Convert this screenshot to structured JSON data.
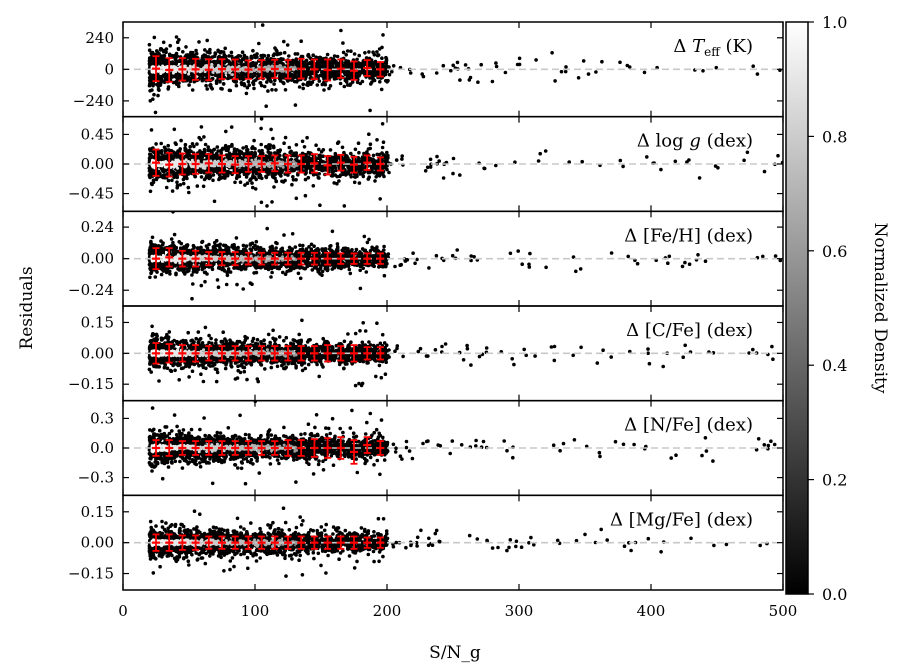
{
  "chart_data": {
    "type": "scatter",
    "xlabel": "S/N_g",
    "ylabel": "Residuals",
    "xlim": [
      0,
      500
    ],
    "x_ticks": [
      0,
      100,
      200,
      300,
      400,
      500
    ],
    "colorbar": {
      "label": "Normalized Density",
      "range": [
        0.0,
        1.0
      ],
      "ticks": [
        "0.0",
        "0.2",
        "0.4",
        "0.6",
        "0.8",
        "1.0"
      ],
      "colormap": "greys (black = 0, white = 1)"
    },
    "reference_line": {
      "y": 0,
      "style": "dashed",
      "color": "#c8c8c8"
    },
    "point_color": "#000000",
    "errorbar_color": "#ff0000",
    "panels": [
      {
        "name": "teff",
        "label_prefix": "Δ ",
        "label_main": "T",
        "label_sub": "eff",
        "label_suffix": " (K)",
        "ylim": [
          -360,
          360
        ],
        "ticks": [
          240,
          0,
          -240
        ],
        "tick_labels": [
          "240",
          "0",
          "−240"
        ],
        "spread": 100,
        "binned": [
          {
            "x": 25,
            "y": 5,
            "err": 95
          },
          {
            "x": 35,
            "y": -5,
            "err": 90
          },
          {
            "x": 45,
            "y": 0,
            "err": 85
          },
          {
            "x": 55,
            "y": 0,
            "err": 80
          },
          {
            "x": 65,
            "y": -3,
            "err": 80
          },
          {
            "x": 75,
            "y": 2,
            "err": 75
          },
          {
            "x": 85,
            "y": 0,
            "err": 75
          },
          {
            "x": 95,
            "y": -2,
            "err": 70
          },
          {
            "x": 105,
            "y": 0,
            "err": 70
          },
          {
            "x": 115,
            "y": 3,
            "err": 70
          },
          {
            "x": 125,
            "y": 0,
            "err": 70
          },
          {
            "x": 135,
            "y": 5,
            "err": 75
          },
          {
            "x": 145,
            "y": 0,
            "err": 75
          },
          {
            "x": 155,
            "y": -5,
            "err": 80
          },
          {
            "x": 165,
            "y": 5,
            "err": 70
          },
          {
            "x": 175,
            "y": -10,
            "err": 70
          },
          {
            "x": 185,
            "y": 10,
            "err": 60
          },
          {
            "x": 195,
            "y": 0,
            "err": 55
          }
        ]
      },
      {
        "name": "logg",
        "label_prefix": "Δ log ",
        "label_main": "g",
        "label_sub": "",
        "label_suffix": " (dex)",
        "ylim": [
          -0.72,
          0.72
        ],
        "ticks": [
          0.45,
          0.0,
          -0.45
        ],
        "tick_labels": [
          "0.45",
          "0.00",
          "−0.45"
        ],
        "spread": 0.2,
        "binned": [
          {
            "x": 25,
            "y": 0.02,
            "err": 0.2
          },
          {
            "x": 35,
            "y": -0.01,
            "err": 0.18
          },
          {
            "x": 45,
            "y": 0.0,
            "err": 0.16
          },
          {
            "x": 55,
            "y": 0.0,
            "err": 0.15
          },
          {
            "x": 65,
            "y": 0.01,
            "err": 0.14
          },
          {
            "x": 75,
            "y": 0.0,
            "err": 0.13
          },
          {
            "x": 85,
            "y": -0.01,
            "err": 0.13
          },
          {
            "x": 95,
            "y": 0.0,
            "err": 0.12
          },
          {
            "x": 105,
            "y": 0.0,
            "err": 0.12
          },
          {
            "x": 115,
            "y": 0.01,
            "err": 0.12
          },
          {
            "x": 125,
            "y": 0.0,
            "err": 0.13
          },
          {
            "x": 135,
            "y": 0.0,
            "err": 0.13
          },
          {
            "x": 145,
            "y": 0.01,
            "err": 0.14
          },
          {
            "x": 155,
            "y": -0.02,
            "err": 0.14
          },
          {
            "x": 165,
            "y": 0.02,
            "err": 0.12
          },
          {
            "x": 175,
            "y": -0.01,
            "err": 0.12
          },
          {
            "x": 185,
            "y": 0.02,
            "err": 0.11
          },
          {
            "x": 195,
            "y": 0.0,
            "err": 0.1
          }
        ]
      },
      {
        "name": "feh",
        "label_prefix": "Δ [Fe/H] (dex)",
        "label_main": "",
        "label_sub": "",
        "label_suffix": "",
        "ylim": [
          -0.36,
          0.36
        ],
        "ticks": [
          0.24,
          0.0,
          -0.24
        ],
        "tick_labels": [
          "0.24",
          "0.00",
          "−0.24"
        ],
        "spread": 0.08,
        "binned": [
          {
            "x": 25,
            "y": 0.0,
            "err": 0.08
          },
          {
            "x": 35,
            "y": 0.01,
            "err": 0.07
          },
          {
            "x": 45,
            "y": 0.0,
            "err": 0.06
          },
          {
            "x": 55,
            "y": 0.0,
            "err": 0.06
          },
          {
            "x": 65,
            "y": 0.0,
            "err": 0.05
          },
          {
            "x": 75,
            "y": 0.0,
            "err": 0.05
          },
          {
            "x": 85,
            "y": 0.0,
            "err": 0.05
          },
          {
            "x": 95,
            "y": 0.0,
            "err": 0.045
          },
          {
            "x": 105,
            "y": 0.0,
            "err": 0.045
          },
          {
            "x": 115,
            "y": 0.0,
            "err": 0.045
          },
          {
            "x": 125,
            "y": 0.0,
            "err": 0.045
          },
          {
            "x": 135,
            "y": 0.0,
            "err": 0.045
          },
          {
            "x": 145,
            "y": 0.0,
            "err": 0.045
          },
          {
            "x": 155,
            "y": 0.0,
            "err": 0.045
          },
          {
            "x": 165,
            "y": 0.0,
            "err": 0.04
          },
          {
            "x": 175,
            "y": 0.0,
            "err": 0.04
          },
          {
            "x": 185,
            "y": 0.0,
            "err": 0.04
          },
          {
            "x": 195,
            "y": 0.0,
            "err": 0.04
          }
        ]
      },
      {
        "name": "cfe",
        "label_prefix": "Δ [C/Fe] (dex)",
        "label_main": "",
        "label_sub": "",
        "label_suffix": "",
        "ylim": [
          -0.23,
          0.23
        ],
        "ticks": [
          0.15,
          0.0,
          -0.15
        ],
        "tick_labels": [
          "0.15",
          "0.00",
          "−0.15"
        ],
        "spread": 0.05,
        "binned": [
          {
            "x": 25,
            "y": 0.0,
            "err": 0.05
          },
          {
            "x": 35,
            "y": 0.0,
            "err": 0.045
          },
          {
            "x": 45,
            "y": 0.0,
            "err": 0.04
          },
          {
            "x": 55,
            "y": 0.0,
            "err": 0.04
          },
          {
            "x": 65,
            "y": 0.0,
            "err": 0.035
          },
          {
            "x": 75,
            "y": 0.0,
            "err": 0.035
          },
          {
            "x": 85,
            "y": 0.0,
            "err": 0.035
          },
          {
            "x": 95,
            "y": 0.0,
            "err": 0.035
          },
          {
            "x": 105,
            "y": 0.0,
            "err": 0.035
          },
          {
            "x": 115,
            "y": 0.0,
            "err": 0.035
          },
          {
            "x": 125,
            "y": 0.0,
            "err": 0.035
          },
          {
            "x": 135,
            "y": 0.0,
            "err": 0.035
          },
          {
            "x": 145,
            "y": 0.0,
            "err": 0.035
          },
          {
            "x": 155,
            "y": 0.0,
            "err": 0.04
          },
          {
            "x": 165,
            "y": 0.0,
            "err": 0.035
          },
          {
            "x": 175,
            "y": 0.0,
            "err": 0.04
          },
          {
            "x": 185,
            "y": 0.0,
            "err": 0.03
          },
          {
            "x": 195,
            "y": 0.0,
            "err": 0.03
          }
        ]
      },
      {
        "name": "nfe",
        "label_prefix": "Δ [N/Fe] (dex)",
        "label_main": "",
        "label_sub": "",
        "label_suffix": "",
        "ylim": [
          -0.48,
          0.48
        ],
        "ticks": [
          0.3,
          0.0,
          -0.3
        ],
        "tick_labels": [
          "0.3",
          "0.0",
          "−0.3"
        ],
        "spread": 0.11,
        "binned": [
          {
            "x": 25,
            "y": 0.0,
            "err": 0.08
          },
          {
            "x": 35,
            "y": 0.0,
            "err": 0.08
          },
          {
            "x": 45,
            "y": 0.0,
            "err": 0.07
          },
          {
            "x": 55,
            "y": 0.0,
            "err": 0.07
          },
          {
            "x": 65,
            "y": 0.0,
            "err": 0.07
          },
          {
            "x": 75,
            "y": 0.0,
            "err": 0.07
          },
          {
            "x": 85,
            "y": 0.0,
            "err": 0.07
          },
          {
            "x": 95,
            "y": 0.0,
            "err": 0.07
          },
          {
            "x": 105,
            "y": 0.0,
            "err": 0.07
          },
          {
            "x": 115,
            "y": 0.0,
            "err": 0.07
          },
          {
            "x": 125,
            "y": 0.0,
            "err": 0.08
          },
          {
            "x": 135,
            "y": 0.0,
            "err": 0.08
          },
          {
            "x": 145,
            "y": 0.0,
            "err": 0.09
          },
          {
            "x": 155,
            "y": 0.0,
            "err": 0.1
          },
          {
            "x": 165,
            "y": 0.0,
            "err": 0.11
          },
          {
            "x": 175,
            "y": -0.04,
            "err": 0.12
          },
          {
            "x": 185,
            "y": 0.03,
            "err": 0.08
          },
          {
            "x": 195,
            "y": 0.0,
            "err": 0.07
          }
        ]
      },
      {
        "name": "mgfe",
        "label_prefix": "Δ [Mg/Fe] (dex)",
        "label_main": "",
        "label_sub": "",
        "label_suffix": "",
        "ylim": [
          -0.23,
          0.23
        ],
        "ticks": [
          0.15,
          0.0,
          -0.15
        ],
        "tick_labels": [
          "0.15",
          "0.00",
          "−0.15"
        ],
        "spread": 0.05,
        "binned": [
          {
            "x": 25,
            "y": 0.0,
            "err": 0.04
          },
          {
            "x": 35,
            "y": 0.0,
            "err": 0.04
          },
          {
            "x": 45,
            "y": 0.0,
            "err": 0.035
          },
          {
            "x": 55,
            "y": 0.0,
            "err": 0.035
          },
          {
            "x": 65,
            "y": 0.0,
            "err": 0.03
          },
          {
            "x": 75,
            "y": 0.0,
            "err": 0.03
          },
          {
            "x": 85,
            "y": 0.0,
            "err": 0.03
          },
          {
            "x": 95,
            "y": 0.0,
            "err": 0.03
          },
          {
            "x": 105,
            "y": 0.0,
            "err": 0.03
          },
          {
            "x": 115,
            "y": 0.0,
            "err": 0.03
          },
          {
            "x": 125,
            "y": 0.0,
            "err": 0.03
          },
          {
            "x": 135,
            "y": 0.0,
            "err": 0.03
          },
          {
            "x": 145,
            "y": 0.0,
            "err": 0.03
          },
          {
            "x": 155,
            "y": 0.0,
            "err": 0.03
          },
          {
            "x": 165,
            "y": 0.0,
            "err": 0.03
          },
          {
            "x": 175,
            "y": 0.0,
            "err": 0.03
          },
          {
            "x": 185,
            "y": 0.0,
            "err": 0.025
          },
          {
            "x": 195,
            "y": 0.0,
            "err": 0.025
          }
        ]
      }
    ]
  }
}
